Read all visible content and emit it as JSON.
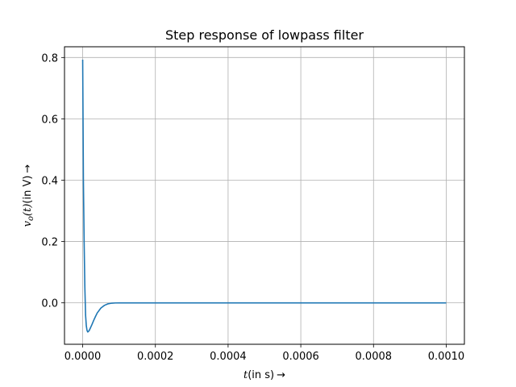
{
  "chart_data": {
    "type": "line",
    "title": "Step response of lowpass filter",
    "xlabel": {
      "var": "t",
      "rest": "(in s)",
      "arrow": "→"
    },
    "ylabel": {
      "var": "v",
      "sub": "o",
      "arg": "(t)",
      "rest": "(in V)",
      "arrow": "→"
    },
    "xlim": [
      -5e-05,
      0.00105
    ],
    "ylim": [
      -0.135,
      0.835
    ],
    "xticks": [
      0.0,
      0.0002,
      0.0004,
      0.0006,
      0.0008,
      0.001
    ],
    "xtick_labels": [
      "0.0000",
      "0.0002",
      "0.0004",
      "0.0006",
      "0.0008",
      "0.0010"
    ],
    "yticks": [
      0.0,
      0.2,
      0.4,
      0.6,
      0.8
    ],
    "ytick_labels": [
      "0.0",
      "0.2",
      "0.4",
      "0.6",
      "0.8"
    ],
    "grid": true,
    "series": [
      {
        "color": "#1f77b4",
        "x": [
          0,
          1e-06,
          2e-06,
          4e-06,
          6e-06,
          8e-06,
          1e-05,
          1.2e-05,
          1.4e-05,
          1.6e-05,
          1.8e-05,
          2e-05,
          2.5e-05,
          3e-05,
          3.5e-05,
          4e-05,
          5e-05,
          6e-05,
          7e-05,
          8e-05,
          9e-05,
          0.0001,
          0.00012,
          0.00014,
          0.00016,
          0.0002,
          0.0003,
          0.0004,
          0.0005,
          0.0006,
          0.0007,
          0.0008,
          0.0009,
          0.001
        ],
        "y": [
          0.793,
          0.6,
          0.4,
          0.2,
          0.05,
          -0.04,
          -0.075,
          -0.09,
          -0.095,
          -0.093,
          -0.09,
          -0.085,
          -0.072,
          -0.058,
          -0.045,
          -0.033,
          -0.017,
          -0.008,
          -0.003,
          -0.001,
          -0.0003,
          0.0,
          0.0,
          0.0,
          0.0,
          0.0,
          0.0,
          0.0,
          0.0,
          0.0,
          0.0,
          0.0,
          0.0,
          0.0
        ]
      }
    ]
  }
}
